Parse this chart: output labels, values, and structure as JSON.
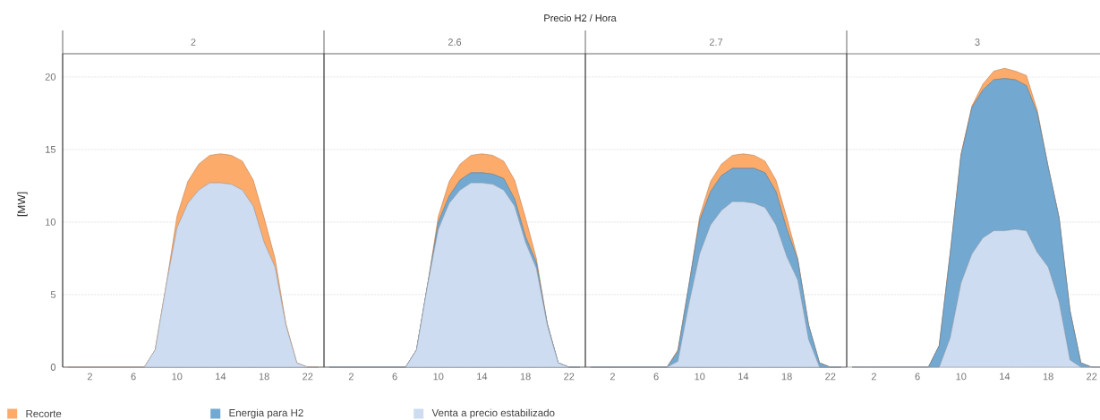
{
  "chart_data": [
    {
      "type": "area",
      "subtitle": "2",
      "ylabel": "[MW]",
      "stacked": true,
      "grid": "y",
      "x": [
        0,
        1,
        2,
        3,
        4,
        5,
        6,
        7,
        8,
        9,
        10,
        11,
        12,
        13,
        14,
        15,
        16,
        17,
        18,
        19,
        20,
        21,
        22,
        23
      ],
      "xlim": [
        -0.5,
        23.5
      ],
      "xticks": [
        2,
        6,
        10,
        14,
        18,
        22
      ],
      "ylim": [
        0,
        21.6
      ],
      "yticks": [
        0,
        5,
        10,
        15,
        20
      ],
      "series": [
        {
          "color": "#cddcf0",
          "values": [
            0,
            0,
            0,
            0,
            0,
            0,
            0,
            0,
            1.2,
            5.6,
            9.6,
            11.3,
            12.2,
            12.7,
            12.7,
            12.6,
            12.2,
            11.1,
            8.6,
            6.9,
            2.9,
            0.3,
            0,
            0
          ]
        },
        {
          "color": "#fcab6a",
          "values": [
            0,
            0,
            0,
            0,
            0,
            0,
            0,
            0,
            0,
            0,
            0.8,
            1.5,
            1.8,
            1.9,
            2.0,
            2.0,
            2.0,
            1.8,
            1.7,
            0.6,
            0.1,
            0,
            0,
            0
          ]
        }
      ]
    },
    {
      "type": "area",
      "title": "Precio H2 / Hora",
      "subtitle": "2.6",
      "stacked": true,
      "grid": "y",
      "tick_labels": "x",
      "legend": "bottom",
      "x": [
        0,
        1,
        2,
        3,
        4,
        5,
        6,
        7,
        8,
        9,
        10,
        11,
        12,
        13,
        14,
        15,
        16,
        17,
        18,
        19,
        20,
        21,
        22,
        23
      ],
      "xlim": [
        -0.5,
        23.5
      ],
      "xticks": [
        2,
        6,
        10,
        14,
        18,
        22
      ],
      "ylim": [
        0,
        21.6
      ],
      "yticks": [
        0,
        5,
        10,
        15,
        20
      ],
      "series": [
        {
          "name": "Venta a precio estabilizado",
          "color": "#cddcf0",
          "values": [
            0,
            0,
            0,
            0,
            0,
            0,
            0,
            0,
            1.2,
            5.6,
            9.5,
            11.3,
            12.2,
            12.7,
            12.7,
            12.6,
            12.2,
            11.1,
            8.6,
            6.8,
            2.9,
            0.3,
            0,
            0
          ]
        },
        {
          "name": "Energia para H2",
          "color": "#73a9d1",
          "values": [
            0,
            0,
            0,
            0,
            0,
            0,
            0,
            0,
            0,
            0,
            0.5,
            0.5,
            0.7,
            0.7,
            0.7,
            0.7,
            0.8,
            0.5,
            0.4,
            0.4,
            0.1,
            0,
            0,
            0
          ]
        },
        {
          "name": "Recorte",
          "color": "#fcab6a",
          "values": [
            0,
            0,
            0,
            0,
            0,
            0,
            0,
            0,
            0,
            0,
            0.4,
            1.0,
            1.1,
            1.2,
            1.3,
            1.3,
            1.2,
            1.3,
            1.3,
            0.3,
            0,
            0,
            0,
            0
          ]
        }
      ]
    },
    {
      "type": "area",
      "subtitle": "2.7",
      "stacked": true,
      "grid": "y",
      "tick_labels": "x",
      "x": [
        0,
        1,
        2,
        3,
        4,
        5,
        6,
        7,
        8,
        9,
        10,
        11,
        12,
        13,
        14,
        15,
        16,
        17,
        18,
        19,
        20,
        21,
        22,
        23
      ],
      "xlim": [
        -0.5,
        23.5
      ],
      "xticks": [
        2,
        6,
        10,
        14,
        18,
        22
      ],
      "ylim": [
        0,
        21.6
      ],
      "yticks": [
        0,
        5,
        10,
        15,
        20
      ],
      "series": [
        {
          "color": "#cddcf0",
          "values": [
            0,
            0,
            0,
            0,
            0,
            0,
            0,
            0,
            0.4,
            4.3,
            7.8,
            9.8,
            10.8,
            11.4,
            11.4,
            11.3,
            11.0,
            9.8,
            7.6,
            6.0,
            1.9,
            0,
            0,
            0
          ]
        },
        {
          "color": "#73a9d1",
          "values": [
            0,
            0,
            0,
            0,
            0,
            0,
            0,
            0,
            0.7,
            1.3,
            2.3,
            2.3,
            2.4,
            2.3,
            2.3,
            2.4,
            2.4,
            2.3,
            1.9,
            1.4,
            1.0,
            0.3,
            0,
            0
          ]
        },
        {
          "color": "#fcab6a",
          "values": [
            0,
            0,
            0,
            0,
            0,
            0,
            0,
            0,
            0.1,
            0,
            0.3,
            0.7,
            0.8,
            0.9,
            1.0,
            0.9,
            0.8,
            0.8,
            0.8,
            0.1,
            0,
            0,
            0,
            0
          ]
        }
      ]
    },
    {
      "type": "area",
      "subtitle": "3",
      "stacked": true,
      "grid": "y",
      "tick_labels": "x",
      "x": [
        0,
        1,
        2,
        3,
        4,
        5,
        6,
        7,
        8,
        9,
        10,
        11,
        12,
        13,
        14,
        15,
        16,
        17,
        18,
        19,
        20,
        21,
        22,
        23
      ],
      "xlim": [
        -0.5,
        23.5
      ],
      "xticks": [
        2,
        6,
        10,
        14,
        18,
        22
      ],
      "ylim": [
        0,
        21.6
      ],
      "yticks": [
        0,
        5,
        10,
        15,
        20
      ],
      "series": [
        {
          "color": "#cddcf0",
          "values": [
            0,
            0,
            0,
            0,
            0,
            0,
            0,
            0,
            0,
            2.0,
            5.8,
            7.8,
            8.9,
            9.4,
            9.4,
            9.5,
            9.4,
            7.9,
            6.9,
            4.5,
            0.5,
            0,
            0,
            0
          ]
        },
        {
          "color": "#73a9d1",
          "values": [
            0,
            0,
            0,
            0,
            0,
            0,
            0,
            0,
            1.5,
            5.8,
            8.8,
            10.1,
            10.2,
            10.4,
            10.5,
            10.3,
            10.0,
            9.6,
            6.9,
            5.8,
            3.4,
            0.3,
            0,
            0
          ]
        },
        {
          "color": "#fcab6a",
          "values": [
            0,
            0,
            0,
            0,
            0,
            0,
            0,
            0,
            0,
            0,
            0.1,
            0.1,
            0.4,
            0.6,
            0.7,
            0.6,
            0.7,
            0.2,
            0,
            0,
            0,
            0,
            0,
            0
          ]
        }
      ]
    }
  ]
}
